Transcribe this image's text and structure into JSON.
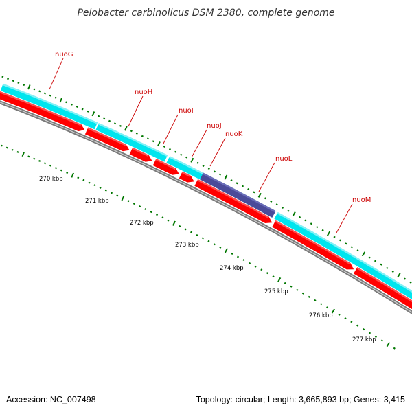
{
  "title": "Pelobacter carbinolicus DSM 2380, complete genome",
  "footer": {
    "accession": "Accession: NC_007498",
    "summary": "Topology: circular; Length: 3,665,893 bp; Genes: 3,415"
  },
  "genes": [
    {
      "name": "nuoG"
    },
    {
      "name": "nuoH"
    },
    {
      "name": "nuoI"
    },
    {
      "name": "nuoJ"
    },
    {
      "name": "nuoK"
    },
    {
      "name": "nuoL"
    },
    {
      "name": "nuoM"
    }
  ],
  "kbp_labels": [
    "270 kbp",
    "271 kbp",
    "272 kbp",
    "273 kbp",
    "274 kbp",
    "275 kbp",
    "276 kbp",
    "277 kbp"
  ],
  "colors": {
    "cds_track": "#00e5ee",
    "highlight_track": "#4b4b99",
    "gene_arrow": "#ff0000",
    "backbone": "#808080",
    "ticks": "#007700",
    "label_line": "#cc0000"
  }
}
